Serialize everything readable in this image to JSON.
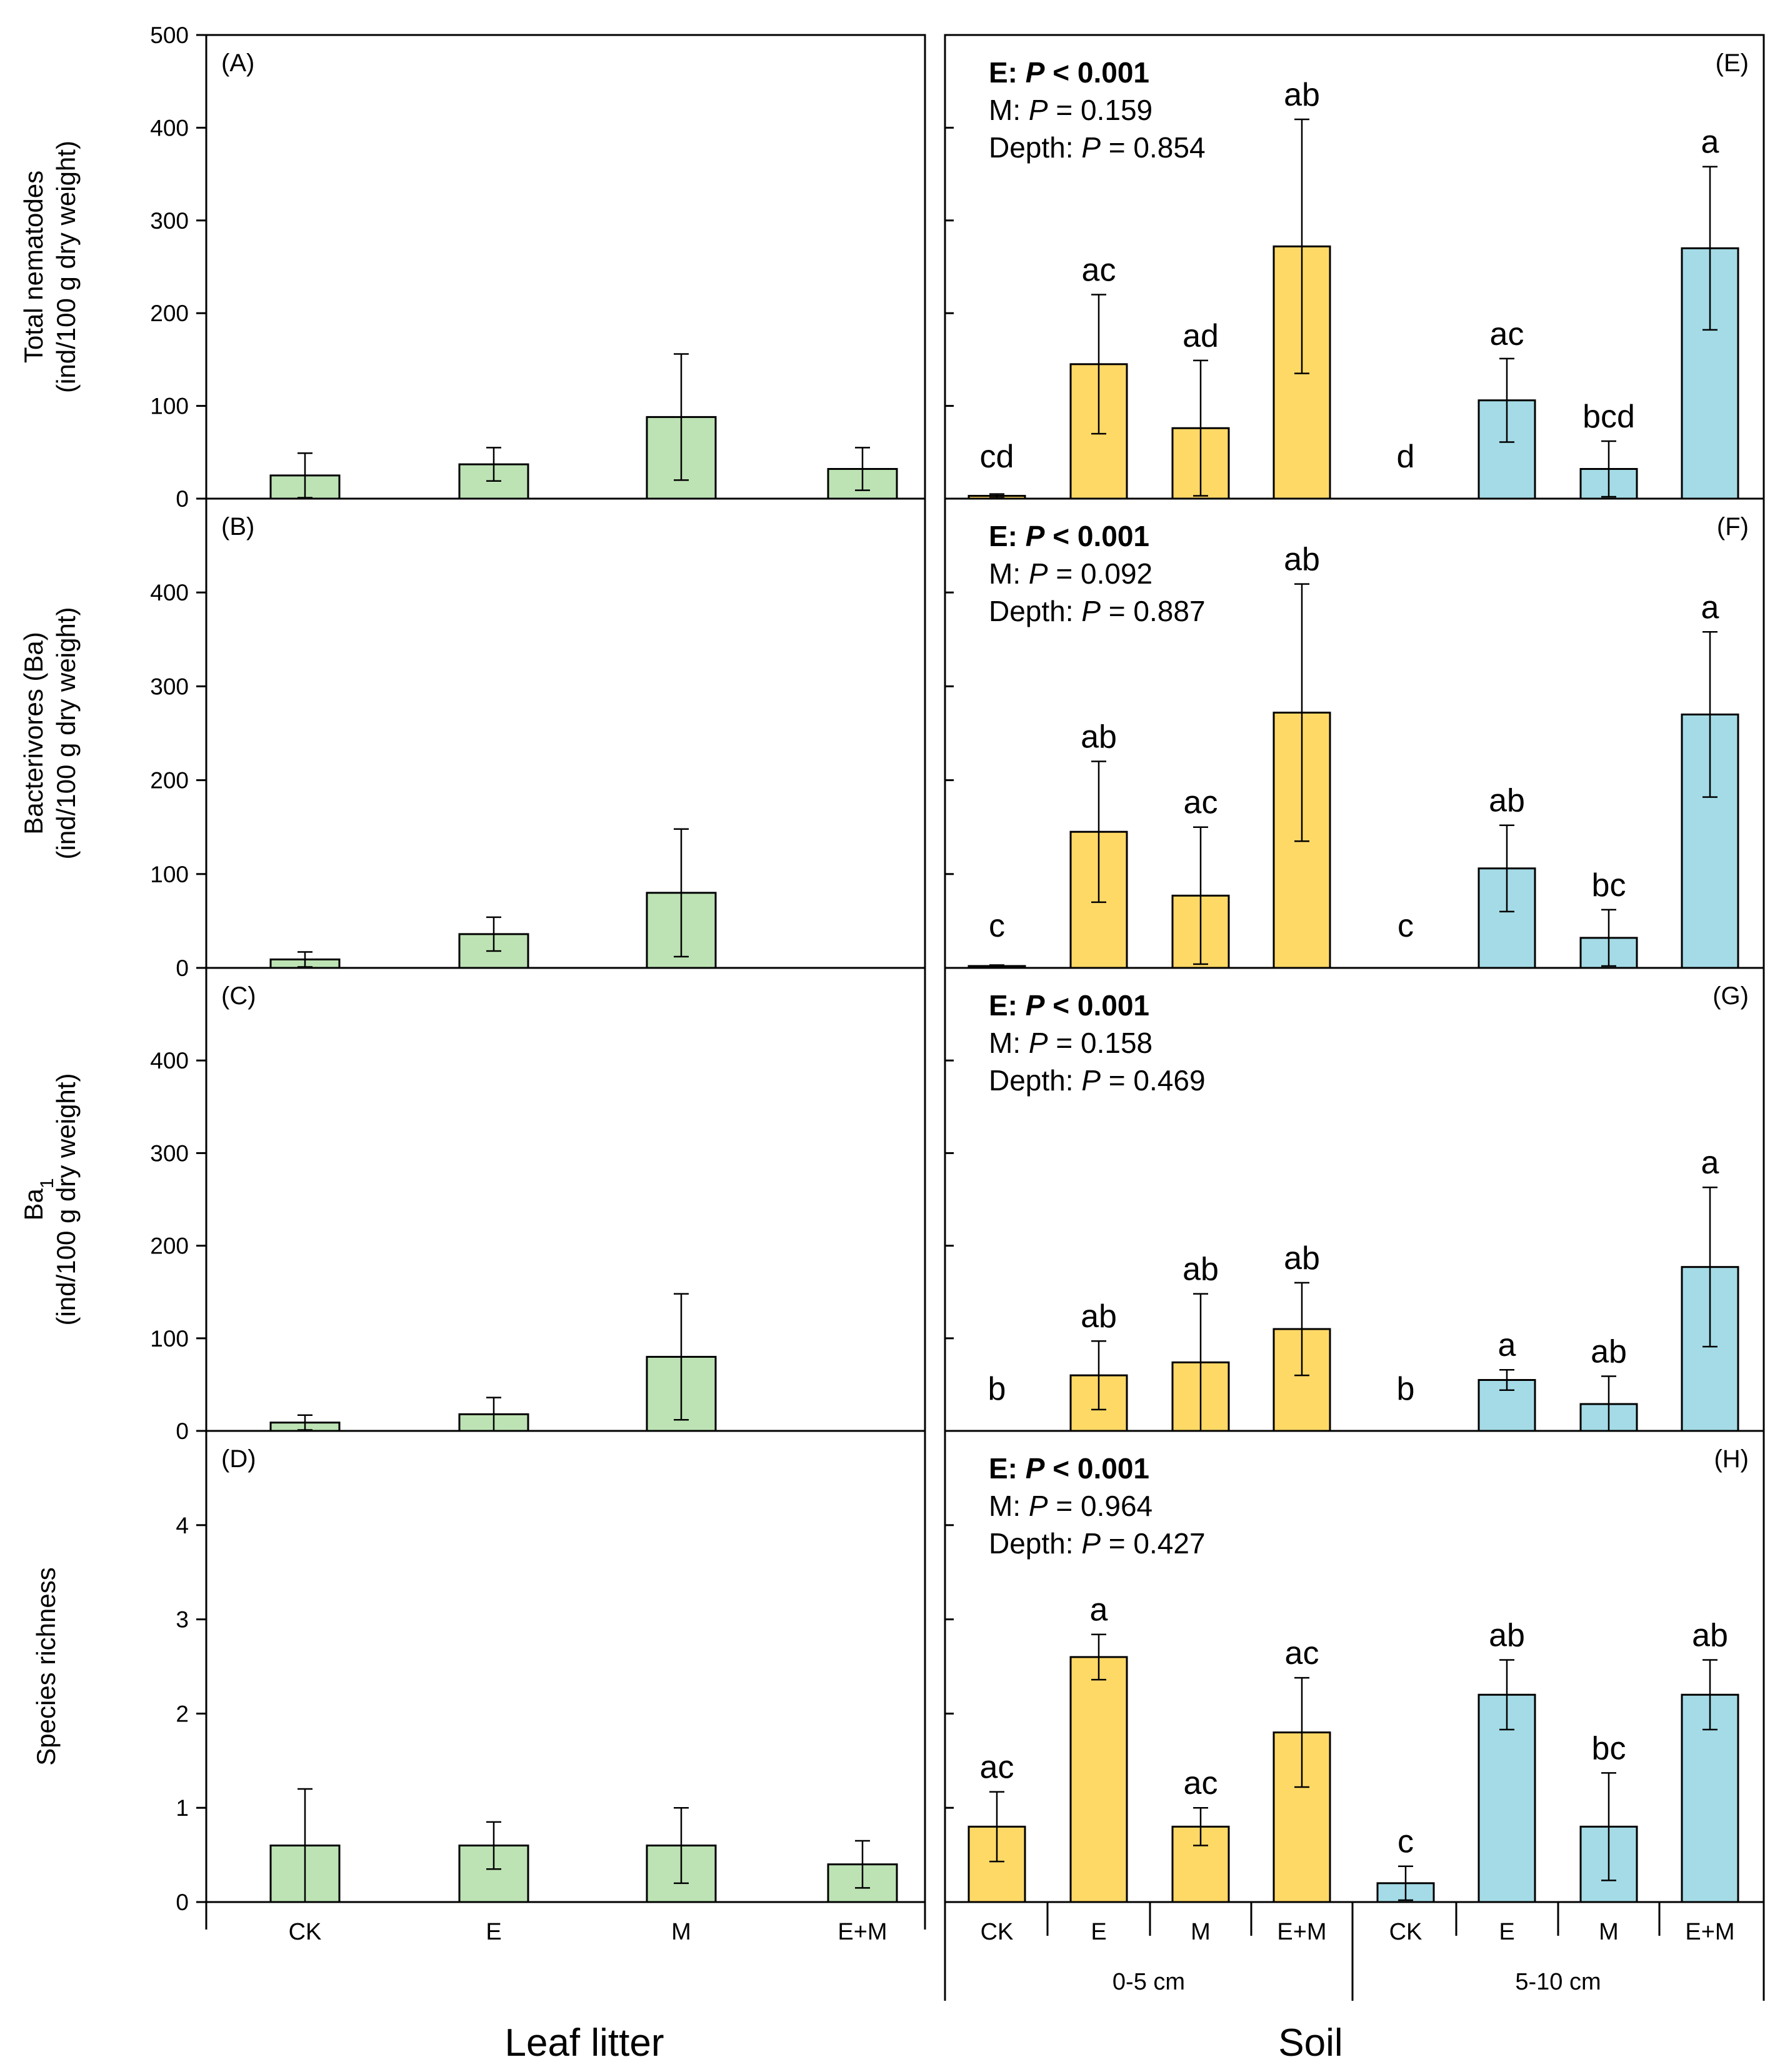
{
  "chart_data": {
    "type": "bar",
    "figure_labels": {
      "leaf_litter": "Leaf litter",
      "soil": "Soil"
    },
    "x_categories": [
      "CK",
      "E",
      "M",
      "E+M"
    ],
    "depth_groups": [
      "0-5 cm",
      "5-10 cm"
    ],
    "colors": {
      "leaf": "#bde3b4",
      "depth_0_5": "#ffd966",
      "depth_5_10": "#a4dbe6",
      "stroke": "#000000"
    },
    "stat_labels": {
      "e": "E: ",
      "m": "M: ",
      "depth": "Depth: ",
      "p": "P",
      "lt": " < 0.001",
      "eq_prefix": " = "
    },
    "rows": [
      {
        "ylabel": [
          "Total nematodes",
          "(ind/100 g dry weight)"
        ],
        "ylim": [
          0,
          500
        ],
        "yticks": [
          "0",
          "100",
          "200",
          "300",
          "400",
          "500"
        ],
        "leaf": {
          "panel": "(A)",
          "values": [
            25,
            37,
            88,
            32
          ],
          "errors": [
            24,
            18,
            68,
            23
          ]
        },
        "soil": {
          "panel": "(E)",
          "stats": {
            "m_p": "0.159",
            "depth_p": "0.854"
          },
          "depth_0_5": {
            "values": [
              3,
              145,
              76,
              272
            ],
            "errors": [
              2,
              75,
              73,
              137
            ],
            "letters": [
              "cd",
              "ac",
              "ad",
              "ab"
            ]
          },
          "depth_5_10": {
            "values": [
              0,
              106,
              32,
              270
            ],
            "errors": [
              0,
              45,
              30,
              88
            ],
            "letters": [
              "d",
              "ac",
              "bcd",
              "a"
            ]
          }
        }
      },
      {
        "ylabel": [
          "Bacterivores (Ba)",
          "(ind/100 g dry weight)"
        ],
        "ylim": [
          0,
          500
        ],
        "yticks": [
          "0",
          "100",
          "200",
          "300",
          "400"
        ],
        "leaf": {
          "panel": "(B)",
          "values": [
            9,
            36,
            80,
            0
          ],
          "errors": [
            8,
            18,
            68,
            0
          ]
        },
        "soil": {
          "panel": "(F)",
          "stats": {
            "m_p": "0.092",
            "depth_p": "0.887"
          },
          "depth_0_5": {
            "values": [
              2,
              145,
              77,
              272
            ],
            "errors": [
              1,
              75,
              73,
              137
            ],
            "letters": [
              "c",
              "ab",
              "ac",
              "ab"
            ]
          },
          "depth_5_10": {
            "values": [
              0,
              106,
              32,
              270
            ],
            "errors": [
              0,
              46,
              30,
              88
            ],
            "letters": [
              "c",
              "ab",
              "bc",
              "a"
            ]
          }
        }
      },
      {
        "ylabel": [
          "Ba1",
          "(ind/100 g dry weight)"
        ],
        "ylim": [
          0,
          500
        ],
        "yticks": [
          "0",
          "100",
          "200",
          "300",
          "400"
        ],
        "leaf": {
          "panel": "(C)",
          "values": [
            9,
            18,
            80,
            0
          ],
          "errors": [
            8,
            18,
            68,
            0
          ]
        },
        "soil": {
          "panel": "(G)",
          "stats": {
            "m_p": "0.158",
            "depth_p": "0.469"
          },
          "depth_0_5": {
            "values": [
              0,
              60,
              74,
              110
            ],
            "errors": [
              0,
              37,
              74,
              50
            ],
            "letters": [
              "b",
              "ab",
              "ab",
              "ab"
            ]
          },
          "depth_5_10": {
            "values": [
              0,
              55,
              29,
              177
            ],
            "errors": [
              0,
              11,
              30,
              86
            ],
            "letters": [
              "b",
              "a",
              "ab",
              "a"
            ]
          }
        }
      },
      {
        "ylabel": [
          "Species richness"
        ],
        "ylim": [
          0,
          5
        ],
        "yticks": [
          "0",
          "1",
          "2",
          "3",
          "4"
        ],
        "leaf": {
          "panel": "(D)",
          "values": [
            0.6,
            0.6,
            0.6,
            0.4
          ],
          "errors": [
            0.6,
            0.25,
            0.4,
            0.25
          ]
        },
        "soil": {
          "panel": "(H)",
          "stats": {
            "m_p": "0.964",
            "depth_p": "0.427"
          },
          "depth_0_5": {
            "values": [
              0.8,
              2.6,
              0.8,
              1.8
            ],
            "errors": [
              0.37,
              0.24,
              0.2,
              0.58
            ],
            "letters": [
              "ac",
              "a",
              "ac",
              "ac"
            ]
          },
          "depth_5_10": {
            "values": [
              0.2,
              2.2,
              0.8,
              2.2
            ],
            "errors": [
              0.18,
              0.37,
              0.57,
              0.37
            ],
            "letters": [
              "c",
              "ab",
              "bc",
              "ab"
            ]
          }
        }
      }
    ]
  }
}
